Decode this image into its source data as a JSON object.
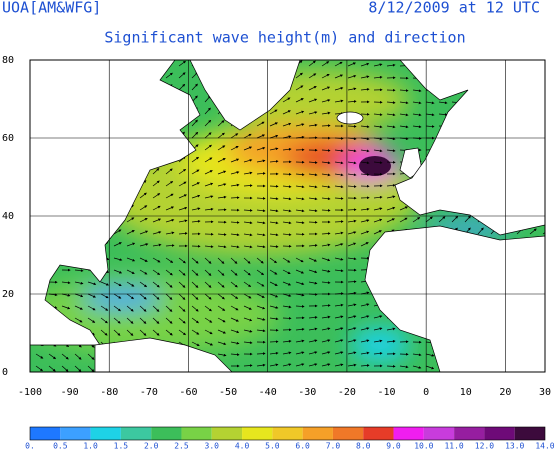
{
  "header": {
    "source": "UOA[AM&WFG]",
    "date": "8/12/2009 at 12 UTC",
    "subtitle": "Significant wave height(m) and direction"
  },
  "map": {
    "xlim": [
      -100,
      30
    ],
    "ylim": [
      0,
      80
    ],
    "xticks": [
      -100,
      -90,
      -80,
      -70,
      -60,
      -50,
      -40,
      -30,
      -20,
      -10,
      0,
      10,
      20,
      30
    ],
    "yticks": [
      0,
      20,
      40,
      60,
      80
    ]
  },
  "legend": {
    "labels": [
      "0.",
      "0.5",
      "1.0",
      "1.5",
      "2.0",
      "2.5",
      "3.0",
      "4.0",
      "5.0",
      "6.0",
      "7.0",
      "8.0",
      "9.0",
      "10.0",
      "11.0",
      "12.0",
      "13.0",
      "14.0"
    ],
    "colors": [
      "#1e78ff",
      "#3ca0ff",
      "#1ed2e6",
      "#3cc8a0",
      "#3cbe5a",
      "#78d246",
      "#b4d232",
      "#e6e61e",
      "#f0c828",
      "#f5a028",
      "#f07828",
      "#e63c28",
      "#f01ef0",
      "#c83cdc",
      "#961ea0",
      "#6e0a78",
      "#3c0a3c"
    ]
  }
}
